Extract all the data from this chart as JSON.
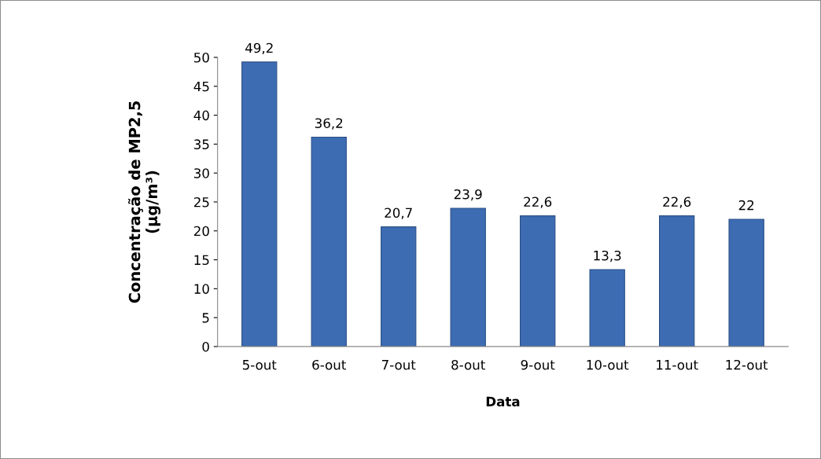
{
  "chart_data": {
    "type": "bar",
    "xlabel": "Data",
    "ylabel": "Concentração de MP2,5\n(µg/m³)",
    "categories": [
      "5-out",
      "6-out",
      "7-out",
      "8-out",
      "9-out",
      "10-out",
      "11-out",
      "12-out"
    ],
    "values": [
      49.2,
      36.2,
      20.7,
      23.9,
      22.6,
      13.3,
      22.6,
      22
    ],
    "value_labels": [
      "49,2",
      "36,2",
      "20,7",
      "23,9",
      "22,6",
      "13,3",
      "22,6",
      "22"
    ],
    "color": "#3d6cb3",
    "ylim": [
      0,
      50
    ],
    "yticks": [
      0,
      5,
      10,
      15,
      20,
      25,
      30,
      35,
      40,
      45,
      50
    ],
    "grid": false,
    "legend": false
  }
}
